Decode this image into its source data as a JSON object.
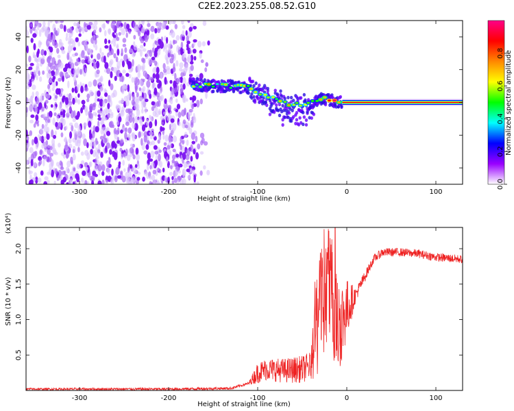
{
  "title": "C2E2.2023.255.08.52.G10",
  "chart_data": [
    {
      "type": "heatmap",
      "xlabel": "Height of straight line (km)",
      "ylabel": "Frequency (Hz)",
      "xlim": [
        -360,
        130
      ],
      "ylim": [
        -50,
        50
      ],
      "xticks": [
        -300,
        -200,
        -100,
        0,
        100
      ],
      "yticks": [
        -40,
        -20,
        0,
        20,
        40
      ],
      "colorbar": {
        "label": "Normalized spectral amplitude",
        "range": [
          0.0,
          1.0
        ],
        "ticks": [
          0.0,
          0.2,
          0.4,
          0.6,
          0.8
        ],
        "colors": [
          "#ffffff",
          "#9900ff",
          "#0000ff",
          "#00ffff",
          "#00ff00",
          "#ffff00",
          "#ff8800",
          "#ff0000",
          "#ff0088"
        ]
      },
      "features": {
        "noise_region_x": [
          -360,
          -170
        ],
        "signal_path": [
          {
            "x": -170,
            "y": 11
          },
          {
            "x": -150,
            "y": 10
          },
          {
            "x": -130,
            "y": 10
          },
          {
            "x": -110,
            "y": 9
          },
          {
            "x": -100,
            "y": 5
          },
          {
            "x": -90,
            "y": 4
          },
          {
            "x": -80,
            "y": 2
          },
          {
            "x": -70,
            "y": 0
          },
          {
            "x": -60,
            "y": -2
          },
          {
            "x": -50,
            "y": -1
          },
          {
            "x": -40,
            "y": 0
          },
          {
            "x": -30,
            "y": 2
          },
          {
            "x": -20,
            "y": 2
          },
          {
            "x": -10,
            "y": 0
          },
          {
            "x": 0,
            "y": 0
          },
          {
            "x": 130,
            "y": 0
          }
        ],
        "carrier_line": {
          "x_start": -5,
          "x_end": 130,
          "y": 0
        }
      }
    },
    {
      "type": "line",
      "xlabel": "Height of straight line (km)",
      "ylabel": "SNR (10 * v/v)",
      "multiplier_label": "(x10⁴)",
      "xlim": [
        -360,
        130
      ],
      "ylim": [
        0,
        2.3
      ],
      "xticks": [
        -300,
        -200,
        -100,
        0,
        100
      ],
      "yticks": [
        0.5,
        1.0,
        1.5,
        2.0
      ],
      "ytick_labels": [
        "0.5",
        "1.0",
        "1.5",
        "2.0"
      ],
      "series": [
        {
          "color": "#ee2222",
          "envelope": [
            {
              "x": -360,
              "y": 0.02
            },
            {
              "x": -200,
              "y": 0.02
            },
            {
              "x": -130,
              "y": 0.03
            },
            {
              "x": -110,
              "y": 0.1
            },
            {
              "x": -100,
              "y": 0.25
            },
            {
              "x": -90,
              "y": 0.3
            },
            {
              "x": -70,
              "y": 0.28
            },
            {
              "x": -50,
              "y": 0.3
            },
            {
              "x": -40,
              "y": 0.35
            },
            {
              "x": -35,
              "y": 0.9
            },
            {
              "x": -28,
              "y": 1.2
            },
            {
              "x": -22,
              "y": 1.5
            },
            {
              "x": -15,
              "y": 1.2
            },
            {
              "x": -10,
              "y": 0.9
            },
            {
              "x": 0,
              "y": 1.15
            },
            {
              "x": 10,
              "y": 1.35
            },
            {
              "x": 20,
              "y": 1.6
            },
            {
              "x": 30,
              "y": 1.85
            },
            {
              "x": 40,
              "y": 1.95
            },
            {
              "x": 60,
              "y": 1.95
            },
            {
              "x": 80,
              "y": 1.93
            },
            {
              "x": 100,
              "y": 1.88
            },
            {
              "x": 130,
              "y": 1.85
            }
          ],
          "noise_amplitude": [
            {
              "x": -360,
              "y": 0.015
            },
            {
              "x": -110,
              "y": 0.02
            },
            {
              "x": -100,
              "y": 0.15
            },
            {
              "x": -40,
              "y": 0.2
            },
            {
              "x": -35,
              "y": 0.8
            },
            {
              "x": -20,
              "y": 0.9
            },
            {
              "x": -5,
              "y": 0.6
            },
            {
              "x": 10,
              "y": 0.1
            },
            {
              "x": 30,
              "y": 0.06
            },
            {
              "x": 130,
              "y": 0.06
            }
          ],
          "peak": {
            "x": -13,
            "y": 2.3
          }
        }
      ]
    }
  ]
}
